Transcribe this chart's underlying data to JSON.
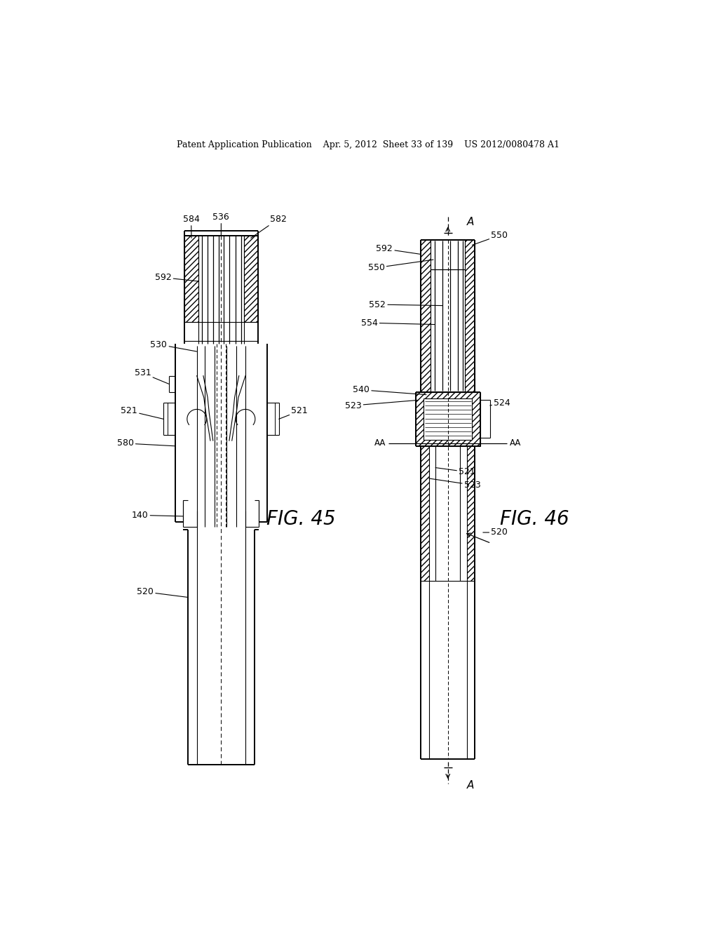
{
  "background_color": "#ffffff",
  "header_text": "Patent Application Publication    Apr. 5, 2012  Sheet 33 of 139    US 2012/0080478 A1",
  "fig45_label": "FIG. 45",
  "fig46_label": "FIG. 46"
}
